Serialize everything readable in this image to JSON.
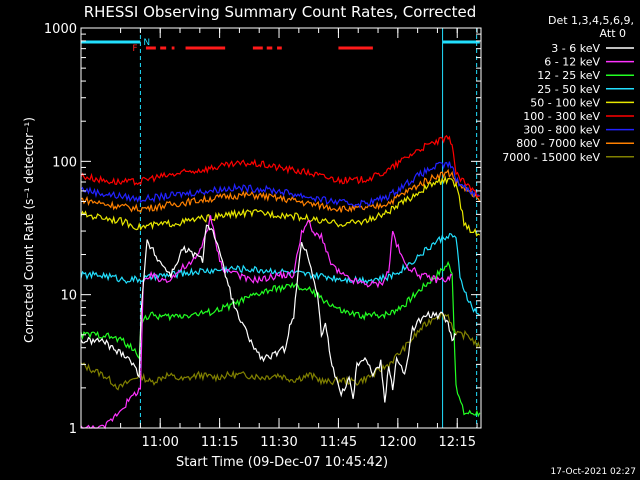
{
  "chart_data": {
    "type": "line",
    "title": "RHESSI Observing Summary Count Rates, Corrected",
    "xlabel": "Start Time (09-Dec-07 10:45:42)",
    "ylabel": "Corrected Count Rate (s⁻¹ detector⁻¹)",
    "ylog": true,
    "ylim": [
      1,
      1000
    ],
    "xlim_min": [
      -5.7,
      85.3
    ],
    "x_units": "minutes after 10:45:42",
    "xtick_labels": [
      "11:00",
      "11:15",
      "11:30",
      "11:45",
      "12:00",
      "12:15"
    ],
    "xtick_values": [
      14.3,
      29.3,
      44.3,
      59.3,
      74.3,
      89.3
    ],
    "ytick_labels": [
      "1",
      "10",
      "100",
      "1000"
    ],
    "ytick_values": [
      1,
      10,
      100,
      1000
    ],
    "legend_header": [
      "Det 1,3,4,5,6,9,",
      "Att 0"
    ],
    "legend_placement": "right",
    "timestamp": "17-Oct-2021 02:27",
    "flags": [
      {
        "label": "N",
        "color": "#22e0ff"
      },
      {
        "label": "F",
        "color": "#ff2020"
      }
    ],
    "vlines": [
      {
        "x": 9.3,
        "style": "dashed",
        "color": "#22e0ff"
      },
      {
        "x": 85.6,
        "style": "solid",
        "color": "#22e0ff"
      },
      {
        "x": 94.2,
        "style": "dashed",
        "color": "#22e0ff"
      }
    ],
    "night_bars": [
      [
        -5.7,
        9.3
      ],
      [
        85.6,
        95.0
      ]
    ],
    "flare_bars": [
      [
        10.7,
        13.2
      ],
      [
        14.3,
        15.8
      ],
      [
        17.2,
        17.9
      ],
      [
        20.7,
        30.7
      ],
      [
        37.7,
        40.2
      ],
      [
        41.2,
        42.6
      ],
      [
        43.8,
        45.0
      ],
      [
        59.3,
        68.0
      ]
    ],
    "series": [
      {
        "name": "3 - 6 keV",
        "color": "#ffffff",
        "points": [
          [
            -5.7,
            4.5
          ],
          [
            0,
            4.5
          ],
          [
            3,
            3.8
          ],
          [
            6,
            3.5
          ],
          [
            9,
            2.5
          ],
          [
            9.5,
            8
          ],
          [
            11,
            25
          ],
          [
            14,
            18
          ],
          [
            17,
            14
          ],
          [
            20,
            22
          ],
          [
            23,
            20
          ],
          [
            25,
            18
          ],
          [
            26,
            35
          ],
          [
            28,
            28
          ],
          [
            30,
            17
          ],
          [
            31.5,
            12
          ],
          [
            33,
            8
          ],
          [
            35,
            6
          ],
          [
            38,
            4
          ],
          [
            40,
            3.3
          ],
          [
            43,
            3.5
          ],
          [
            46,
            4
          ],
          [
            47,
            6
          ],
          [
            48,
            7
          ],
          [
            50,
            25
          ],
          [
            52,
            18
          ],
          [
            54,
            10
          ],
          [
            55,
            5
          ],
          [
            56,
            6
          ],
          [
            57,
            4
          ],
          [
            58,
            2.7
          ],
          [
            60,
            1.8
          ],
          [
            62,
            2.4
          ],
          [
            63,
            1.7
          ],
          [
            64,
            3
          ],
          [
            66,
            3.5
          ],
          [
            68,
            2.5
          ],
          [
            70,
            3.1
          ],
          [
            71,
            1.6
          ],
          [
            72,
            3
          ],
          [
            73,
            2
          ],
          [
            74,
            3.3
          ],
          [
            76,
            2.5
          ],
          [
            77,
            3.6
          ],
          [
            78,
            5.5
          ],
          [
            80,
            6.5
          ],
          [
            82,
            7
          ],
          [
            84,
            7
          ],
          [
            86,
            7
          ],
          [
            87,
            6
          ],
          [
            88,
            4.5
          ],
          [
            89,
            5
          ]
        ]
      },
      {
        "name": "6 - 12 keV",
        "color": "#ff33ff",
        "points": [
          [
            -5.7,
            1
          ],
          [
            0,
            1
          ],
          [
            9.3,
            2
          ],
          [
            10,
            12
          ],
          [
            12,
            14
          ],
          [
            14,
            13
          ],
          [
            16,
            13
          ],
          [
            18,
            14
          ],
          [
            20,
            16
          ],
          [
            22,
            17
          ],
          [
            24,
            20
          ],
          [
            26,
            30
          ],
          [
            27,
            38
          ],
          [
            28,
            28
          ],
          [
            29,
            20
          ],
          [
            30,
            16
          ],
          [
            31,
            15
          ],
          [
            33,
            15
          ],
          [
            36,
            13
          ],
          [
            40,
            13
          ],
          [
            44,
            14
          ],
          [
            48,
            14
          ],
          [
            50,
            30
          ],
          [
            52,
            35
          ],
          [
            53,
            28
          ],
          [
            55,
            28
          ],
          [
            57,
            18
          ],
          [
            59,
            15
          ],
          [
            62,
            13
          ],
          [
            66,
            12
          ],
          [
            70,
            12
          ],
          [
            72,
            15
          ],
          [
            73,
            30
          ],
          [
            74,
            24
          ],
          [
            76,
            17
          ],
          [
            80,
            14
          ],
          [
            84,
            13
          ],
          [
            87,
            13
          ],
          [
            88,
            14
          ]
        ]
      },
      {
        "name": "12 - 25 keV",
        "color": "#22ff22",
        "points": [
          [
            -5.7,
            5
          ],
          [
            0,
            5
          ],
          [
            5,
            4.5
          ],
          [
            9,
            3.5
          ],
          [
            9.5,
            6.5
          ],
          [
            12,
            7
          ],
          [
            16,
            6.8
          ],
          [
            20,
            7
          ],
          [
            24,
            7.2
          ],
          [
            28,
            7.5
          ],
          [
            32,
            8.3
          ],
          [
            36,
            9.3
          ],
          [
            40,
            10.4
          ],
          [
            44,
            11.2
          ],
          [
            48,
            11.6
          ],
          [
            52,
            10.8
          ],
          [
            56,
            9
          ],
          [
            60,
            7.5
          ],
          [
            64,
            7
          ],
          [
            68,
            7
          ],
          [
            72,
            7.2
          ],
          [
            76,
            8.5
          ],
          [
            80,
            11
          ],
          [
            84,
            14
          ],
          [
            87,
            17
          ],
          [
            88,
            15
          ],
          [
            89,
            2
          ],
          [
            91,
            1.3
          ],
          [
            95,
            1.3
          ]
        ]
      },
      {
        "name": "25 - 50 keV",
        "color": "#22e0ff",
        "points": [
          [
            -5.7,
            14
          ],
          [
            0,
            14
          ],
          [
            5,
            13
          ],
          [
            9,
            13
          ],
          [
            12,
            13.5
          ],
          [
            16,
            14
          ],
          [
            20,
            14.5
          ],
          [
            24,
            15
          ],
          [
            28,
            15.2
          ],
          [
            32,
            15.7
          ],
          [
            36,
            15.6
          ],
          [
            40,
            15.3
          ],
          [
            44,
            15
          ],
          [
            48,
            14.5
          ],
          [
            52,
            14
          ],
          [
            56,
            13.7
          ],
          [
            60,
            13.2
          ],
          [
            64,
            13
          ],
          [
            68,
            13
          ],
          [
            72,
            13.5
          ],
          [
            76,
            16
          ],
          [
            80,
            20
          ],
          [
            84,
            25
          ],
          [
            87,
            28
          ],
          [
            89,
            27
          ],
          [
            90,
            13
          ],
          [
            93,
            8
          ],
          [
            95,
            7
          ]
        ]
      },
      {
        "name": "50 - 100 keV",
        "color": "#e8e800",
        "points": [
          [
            -5.7,
            40
          ],
          [
            0,
            38
          ],
          [
            4,
            36
          ],
          [
            9,
            32
          ],
          [
            12,
            33
          ],
          [
            16,
            34
          ],
          [
            20,
            35
          ],
          [
            24,
            37
          ],
          [
            28,
            38
          ],
          [
            32,
            40
          ],
          [
            36,
            41
          ],
          [
            40,
            41
          ],
          [
            44,
            40
          ],
          [
            48,
            39
          ],
          [
            52,
            37
          ],
          [
            56,
            35
          ],
          [
            60,
            34
          ],
          [
            64,
            35
          ],
          [
            68,
            37
          ],
          [
            72,
            42
          ],
          [
            76,
            50
          ],
          [
            80,
            60
          ],
          [
            84,
            70
          ],
          [
            87,
            72
          ],
          [
            89,
            68
          ],
          [
            91,
            35
          ],
          [
            93,
            30
          ],
          [
            95,
            28
          ]
        ]
      },
      {
        "name": "100 - 300 keV",
        "color": "#ff0000",
        "points": [
          [
            -5.7,
            78
          ],
          [
            0,
            72
          ],
          [
            4,
            70
          ],
          [
            9,
            70
          ],
          [
            12,
            75
          ],
          [
            16,
            78
          ],
          [
            20,
            82
          ],
          [
            24,
            86
          ],
          [
            28,
            90
          ],
          [
            32,
            94
          ],
          [
            36,
            97
          ],
          [
            40,
            95
          ],
          [
            44,
            90
          ],
          [
            48,
            86
          ],
          [
            52,
            82
          ],
          [
            56,
            76
          ],
          [
            60,
            72
          ],
          [
            64,
            72
          ],
          [
            68,
            76
          ],
          [
            72,
            86
          ],
          [
            76,
            105
          ],
          [
            80,
            125
          ],
          [
            84,
            140
          ],
          [
            87,
            148
          ],
          [
            88,
            140
          ],
          [
            89,
            80
          ],
          [
            92,
            65
          ],
          [
            95,
            55
          ]
        ]
      },
      {
        "name": "300 - 800 keV",
        "color": "#2222ff",
        "points": [
          [
            -5.7,
            62
          ],
          [
            0,
            57
          ],
          [
            4,
            55
          ],
          [
            9,
            52
          ],
          [
            12,
            53
          ],
          [
            16,
            55
          ],
          [
            20,
            57
          ],
          [
            24,
            59
          ],
          [
            28,
            61
          ],
          [
            32,
            63
          ],
          [
            36,
            63
          ],
          [
            40,
            62
          ],
          [
            44,
            60
          ],
          [
            48,
            57
          ],
          [
            52,
            54
          ],
          [
            56,
            51
          ],
          [
            60,
            49
          ],
          [
            64,
            48
          ],
          [
            68,
            50
          ],
          [
            72,
            55
          ],
          [
            76,
            67
          ],
          [
            80,
            80
          ],
          [
            84,
            92
          ],
          [
            87,
            95
          ],
          [
            88,
            92
          ],
          [
            89,
            72
          ],
          [
            92,
            62
          ],
          [
            95,
            55
          ]
        ]
      },
      {
        "name": "800 - 7000 keV",
        "color": "#ff8000",
        "points": [
          [
            -5.7,
            52
          ],
          [
            0,
            48
          ],
          [
            4,
            46
          ],
          [
            9,
            44
          ],
          [
            12,
            45
          ],
          [
            16,
            47
          ],
          [
            20,
            49
          ],
          [
            24,
            51
          ],
          [
            28,
            53
          ],
          [
            32,
            55
          ],
          [
            36,
            56
          ],
          [
            40,
            55
          ],
          [
            44,
            53
          ],
          [
            48,
            51
          ],
          [
            52,
            48
          ],
          [
            56,
            46
          ],
          [
            60,
            44
          ],
          [
            64,
            44
          ],
          [
            68,
            45
          ],
          [
            72,
            49
          ],
          [
            76,
            58
          ],
          [
            80,
            68
          ],
          [
            84,
            78
          ],
          [
            87,
            82
          ],
          [
            88,
            80
          ],
          [
            89,
            70
          ],
          [
            92,
            60
          ],
          [
            95,
            50
          ]
        ]
      },
      {
        "name": "7000 - 15000 keV",
        "color": "#808000",
        "points": [
          [
            -5.7,
            3
          ],
          [
            0,
            2.5
          ],
          [
            4,
            2
          ],
          [
            9,
            2.5
          ],
          [
            12,
            2.2
          ],
          [
            16,
            2.5
          ],
          [
            20,
            2.3
          ],
          [
            24,
            2.5
          ],
          [
            28,
            2.4
          ],
          [
            32,
            2.5
          ],
          [
            36,
            2.5
          ],
          [
            40,
            2.4
          ],
          [
            44,
            2.5
          ],
          [
            48,
            2.3
          ],
          [
            52,
            2.5
          ],
          [
            56,
            2.2
          ],
          [
            60,
            2.3
          ],
          [
            64,
            2.2
          ],
          [
            68,
            2.5
          ],
          [
            72,
            3
          ],
          [
            76,
            4
          ],
          [
            80,
            5.5
          ],
          [
            84,
            7
          ],
          [
            87,
            7
          ],
          [
            89,
            5
          ],
          [
            92,
            5
          ],
          [
            95,
            4
          ]
        ]
      }
    ]
  }
}
